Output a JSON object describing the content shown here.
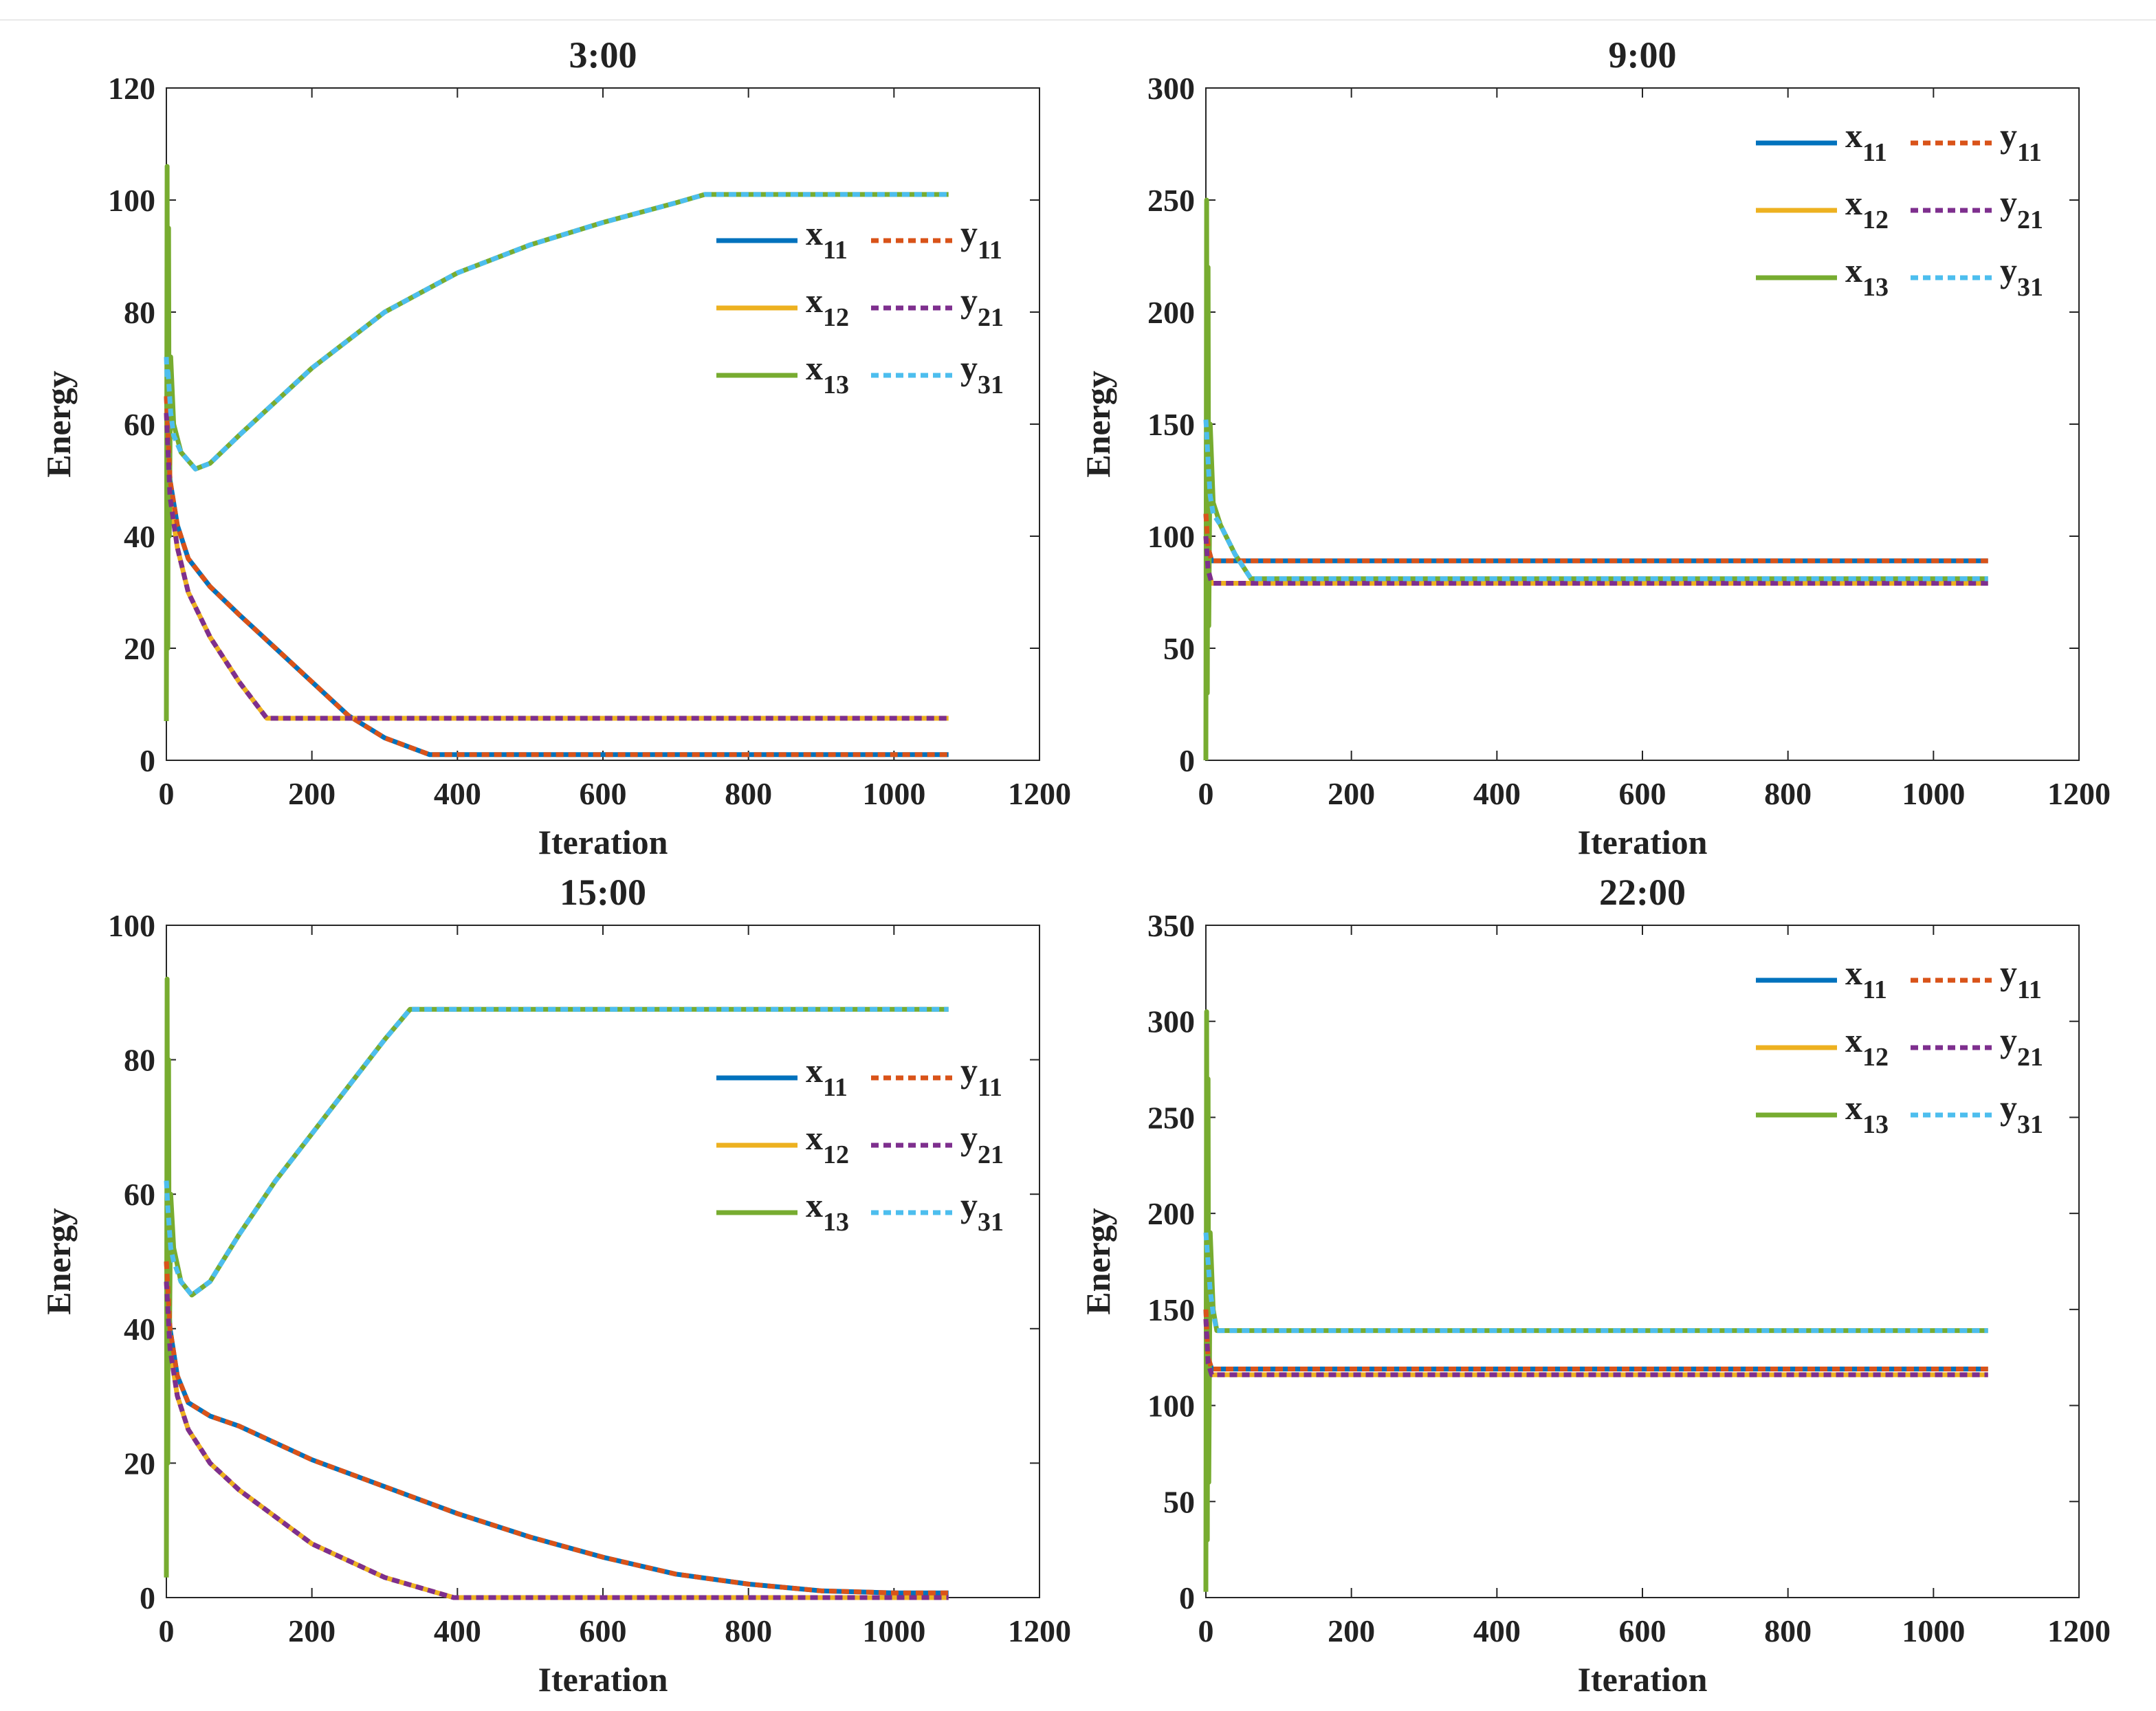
{
  "colors": {
    "x11": "#0072BD",
    "x12": "#EDB120",
    "x13": "#77AC30",
    "y11": "#D95319",
    "y21": "#7E2F8E",
    "y31": "#4DBEEE"
  },
  "chart_data": [
    {
      "type": "line",
      "title": "3:00",
      "xlabel": "Iteration",
      "ylabel": "Energy",
      "xlim": [
        0,
        1200
      ],
      "ylim": [
        0,
        120
      ],
      "xticks": [
        0,
        200,
        400,
        600,
        800,
        1000,
        1200
      ],
      "yticks": [
        0,
        20,
        40,
        60,
        80,
        100,
        120
      ],
      "legend_position": "right",
      "series": [
        {
          "key": "x11",
          "name": "x",
          "sub": "11",
          "style": "solid",
          "x": [
            0,
            5,
            15,
            30,
            60,
            100,
            150,
            200,
            250,
            300,
            362,
            1075
          ],
          "y": [
            65,
            50,
            42,
            36,
            31,
            26,
            20,
            14,
            8,
            4,
            1,
            1
          ]
        },
        {
          "key": "y11",
          "name": "y",
          "sub": "11",
          "style": "dashed",
          "x": [
            0,
            5,
            15,
            30,
            60,
            100,
            150,
            200,
            250,
            300,
            362,
            1075
          ],
          "y": [
            65,
            50,
            42,
            36,
            31,
            26,
            20,
            14,
            8,
            4,
            1,
            1
          ]
        },
        {
          "key": "x12",
          "name": "x",
          "sub": "12",
          "style": "solid",
          "x": [
            0,
            5,
            15,
            30,
            60,
            100,
            138,
            1075
          ],
          "y": [
            62,
            47,
            38,
            30,
            22,
            14,
            7.5,
            7.5
          ]
        },
        {
          "key": "y21",
          "name": "y",
          "sub": "21",
          "style": "dashed",
          "x": [
            0,
            5,
            15,
            30,
            60,
            100,
            138,
            1075
          ],
          "y": [
            62,
            47,
            38,
            30,
            22,
            14,
            7.5,
            7.5
          ]
        },
        {
          "key": "x13",
          "name": "x",
          "sub": "13",
          "style": "solid",
          "x": [
            0,
            1,
            2,
            3,
            4,
            6,
            10,
            20,
            40,
            60,
            100,
            150,
            200,
            300,
            400,
            500,
            600,
            700,
            740,
            1075
          ],
          "y": [
            7,
            106,
            20,
            95,
            40,
            72,
            60,
            55,
            52,
            53,
            58,
            64,
            70,
            80,
            87,
            92,
            96,
            99.5,
            101,
            101
          ]
        },
        {
          "key": "y31",
          "name": "y",
          "sub": "31",
          "style": "dashed",
          "x": [
            0,
            1,
            2,
            4,
            6,
            10,
            20,
            40,
            60,
            100,
            150,
            200,
            300,
            400,
            500,
            600,
            700,
            740,
            1075
          ],
          "y": [
            72,
            68,
            70,
            66,
            62,
            58,
            55,
            52,
            53,
            58,
            64,
            70,
            80,
            87,
            92,
            96,
            99.5,
            101,
            101
          ]
        }
      ],
      "legend": [
        "x11",
        "y11",
        "x12",
        "y21",
        "x13",
        "y31"
      ]
    },
    {
      "type": "line",
      "title": "9:00",
      "xlabel": "Iteration",
      "ylabel": "Energy",
      "xlim": [
        0,
        1200
      ],
      "ylim": [
        0,
        300
      ],
      "xticks": [
        0,
        200,
        400,
        600,
        800,
        1000,
        1200
      ],
      "yticks": [
        0,
        50,
        100,
        150,
        200,
        250,
        300
      ],
      "legend_position": "top-right",
      "series": [
        {
          "key": "x11",
          "name": "x",
          "sub": "11",
          "style": "solid",
          "x": [
            0,
            3,
            8,
            1075
          ],
          "y": [
            110,
            95,
            89,
            89
          ]
        },
        {
          "key": "y11",
          "name": "y",
          "sub": "11",
          "style": "dashed",
          "x": [
            0,
            3,
            8,
            1075
          ],
          "y": [
            110,
            95,
            89,
            89
          ]
        },
        {
          "key": "x12",
          "name": "x",
          "sub": "12",
          "style": "solid",
          "x": [
            0,
            3,
            8,
            1075
          ],
          "y": [
            100,
            85,
            79,
            79
          ]
        },
        {
          "key": "y21",
          "name": "y",
          "sub": "21",
          "style": "dashed",
          "x": [
            0,
            3,
            8,
            1075
          ],
          "y": [
            100,
            85,
            79,
            79
          ]
        },
        {
          "key": "x13",
          "name": "x",
          "sub": "13",
          "style": "solid",
          "x": [
            0,
            1,
            2,
            3,
            4,
            6,
            10,
            20,
            40,
            62,
            1075
          ],
          "y": [
            0,
            250,
            30,
            220,
            60,
            150,
            115,
            105,
            92,
            81,
            81
          ]
        },
        {
          "key": "y31",
          "name": "y",
          "sub": "31",
          "style": "dashed",
          "x": [
            0,
            2,
            4,
            6,
            10,
            20,
            40,
            62,
            1075
          ],
          "y": [
            152,
            140,
            128,
            118,
            110,
            105,
            92,
            81,
            81
          ]
        }
      ],
      "legend": [
        "x11",
        "y11",
        "x12",
        "y21",
        "x13",
        "y31"
      ]
    },
    {
      "type": "line",
      "title": "15:00",
      "xlabel": "Iteration",
      "ylabel": "Energy",
      "xlim": [
        0,
        1200
      ],
      "ylim": [
        0,
        100
      ],
      "xticks": [
        0,
        200,
        400,
        600,
        800,
        1000,
        1200
      ],
      "yticks": [
        0,
        20,
        40,
        60,
        80,
        100
      ],
      "legend_position": "right",
      "series": [
        {
          "key": "x11",
          "name": "x",
          "sub": "11",
          "style": "solid",
          "x": [
            0,
            5,
            15,
            30,
            60,
            100,
            200,
            300,
            400,
            500,
            600,
            700,
            800,
            900,
            1000,
            1075
          ],
          "y": [
            50,
            40,
            33,
            29,
            27,
            25.5,
            20.5,
            16.5,
            12.5,
            9,
            6,
            3.5,
            2,
            1,
            0.7,
            0.7
          ]
        },
        {
          "key": "y11",
          "name": "y",
          "sub": "11",
          "style": "dashed",
          "x": [
            0,
            5,
            15,
            30,
            60,
            100,
            200,
            300,
            400,
            500,
            600,
            700,
            800,
            900,
            1000,
            1075
          ],
          "y": [
            50,
            40,
            33,
            29,
            27,
            25.5,
            20.5,
            16.5,
            12.5,
            9,
            6,
            3.5,
            2,
            1,
            0.7,
            0.7
          ]
        },
        {
          "key": "x12",
          "name": "x",
          "sub": "12",
          "style": "solid",
          "x": [
            0,
            5,
            15,
            30,
            60,
            100,
            200,
            300,
            395,
            1075
          ],
          "y": [
            47,
            37,
            30,
            25,
            20,
            16,
            8,
            3,
            0,
            0
          ]
        },
        {
          "key": "y21",
          "name": "y",
          "sub": "21",
          "style": "dashed",
          "x": [
            0,
            5,
            15,
            30,
            60,
            100,
            200,
            300,
            395,
            1075
          ],
          "y": [
            47,
            37,
            30,
            25,
            20,
            16,
            8,
            3,
            0,
            0
          ]
        },
        {
          "key": "x13",
          "name": "x",
          "sub": "13",
          "style": "solid",
          "x": [
            0,
            1,
            2,
            3,
            4,
            6,
            10,
            20,
            35,
            60,
            100,
            150,
            200,
            250,
            300,
            335,
            1075
          ],
          "y": [
            3,
            92,
            20,
            80,
            35,
            60,
            52,
            47,
            45,
            47,
            54,
            62,
            69,
            76,
            83,
            87.5,
            87.5
          ]
        },
        {
          "key": "y31",
          "name": "y",
          "sub": "31",
          "style": "dashed",
          "x": [
            0,
            2,
            4,
            6,
            10,
            20,
            35,
            60,
            100,
            150,
            200,
            250,
            300,
            335,
            1075
          ],
          "y": [
            62,
            58,
            55,
            52,
            50,
            47,
            45,
            47,
            54,
            62,
            69,
            76,
            83,
            87.5,
            87.5
          ]
        }
      ],
      "legend": [
        "x11",
        "y11",
        "x12",
        "y21",
        "x13",
        "y31"
      ]
    },
    {
      "type": "line",
      "title": "22:00",
      "xlabel": "Iteration",
      "ylabel": "Energy",
      "xlim": [
        0,
        1200
      ],
      "ylim": [
        0,
        350
      ],
      "xticks": [
        0,
        200,
        400,
        600,
        800,
        1000,
        1200
      ],
      "yticks": [
        0,
        50,
        100,
        150,
        200,
        250,
        300,
        350
      ],
      "legend_position": "top-right",
      "series": [
        {
          "key": "x11",
          "name": "x",
          "sub": "11",
          "style": "solid",
          "x": [
            0,
            3,
            8,
            1075
          ],
          "y": [
            150,
            125,
            119,
            119
          ]
        },
        {
          "key": "y11",
          "name": "y",
          "sub": "11",
          "style": "dashed",
          "x": [
            0,
            3,
            8,
            1075
          ],
          "y": [
            150,
            125,
            119,
            119
          ]
        },
        {
          "key": "x12",
          "name": "x",
          "sub": "12",
          "style": "solid",
          "x": [
            0,
            3,
            8,
            1075
          ],
          "y": [
            145,
            122,
            116,
            116
          ]
        },
        {
          "key": "y21",
          "name": "y",
          "sub": "21",
          "style": "dashed",
          "x": [
            0,
            3,
            8,
            1075
          ],
          "y": [
            145,
            122,
            116,
            116
          ]
        },
        {
          "key": "x13",
          "name": "x",
          "sub": "13",
          "style": "solid",
          "x": [
            0,
            1,
            2,
            3,
            4,
            6,
            10,
            15,
            1075
          ],
          "y": [
            3,
            305,
            30,
            270,
            60,
            190,
            150,
            139,
            139
          ]
        },
        {
          "key": "y31",
          "name": "y",
          "sub": "31",
          "style": "dashed",
          "x": [
            0,
            2,
            4,
            6,
            10,
            15,
            1075
          ],
          "y": [
            190,
            180,
            170,
            160,
            148,
            139,
            139
          ]
        }
      ],
      "legend": [
        "x11",
        "y11",
        "x12",
        "y21",
        "x13",
        "y31"
      ]
    }
  ]
}
